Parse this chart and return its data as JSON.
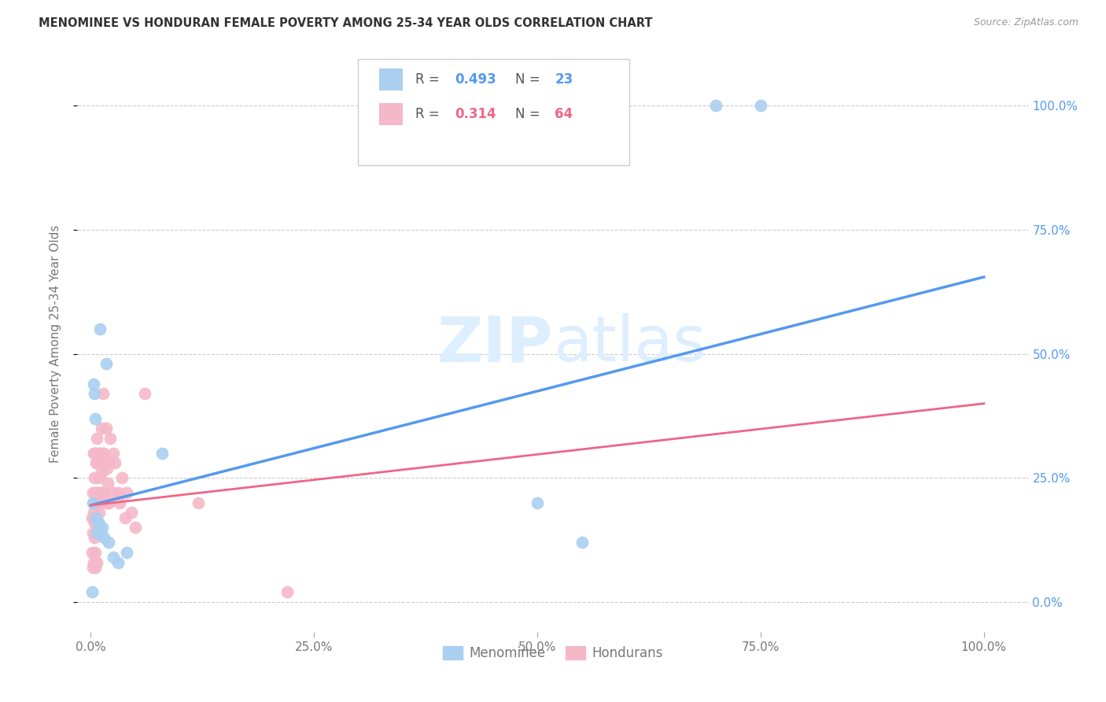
{
  "title": "MENOMINEE VS HONDURAN FEMALE POVERTY AMONG 25-34 YEAR OLDS CORRELATION CHART",
  "source": "Source: ZipAtlas.com",
  "ylabel": "Female Poverty Among 25-34 Year Olds",
  "menominee_R": 0.493,
  "menominee_N": 23,
  "honduran_R": 0.314,
  "honduran_N": 64,
  "menominee_color": "#aacff0",
  "honduran_color": "#f5b8c8",
  "menominee_line_color": "#5599ee",
  "honduran_line_color": "#ee6688",
  "background_color": "#ffffff",
  "menominee_x": [
    0.001,
    0.002,
    0.003,
    0.004,
    0.005,
    0.006,
    0.007,
    0.008,
    0.009,
    0.01,
    0.011,
    0.013,
    0.015,
    0.017,
    0.02,
    0.025,
    0.03,
    0.04,
    0.5,
    0.55,
    0.7,
    0.75,
    0.08
  ],
  "menominee_y": [
    0.02,
    0.2,
    0.44,
    0.42,
    0.37,
    0.17,
    0.14,
    0.16,
    0.15,
    0.55,
    0.14,
    0.15,
    0.13,
    0.48,
    0.12,
    0.09,
    0.08,
    0.1,
    0.2,
    0.12,
    1.0,
    1.0,
    0.3
  ],
  "honduran_x": [
    0.001,
    0.001,
    0.002,
    0.002,
    0.002,
    0.003,
    0.003,
    0.003,
    0.003,
    0.004,
    0.004,
    0.004,
    0.004,
    0.005,
    0.005,
    0.005,
    0.005,
    0.005,
    0.006,
    0.006,
    0.006,
    0.006,
    0.007,
    0.007,
    0.007,
    0.007,
    0.007,
    0.008,
    0.008,
    0.008,
    0.009,
    0.009,
    0.01,
    0.01,
    0.011,
    0.011,
    0.012,
    0.012,
    0.013,
    0.013,
    0.014,
    0.015,
    0.015,
    0.016,
    0.017,
    0.018,
    0.018,
    0.019,
    0.02,
    0.02,
    0.022,
    0.025,
    0.025,
    0.027,
    0.03,
    0.032,
    0.035,
    0.038,
    0.04,
    0.045,
    0.05,
    0.06,
    0.12,
    0.22
  ],
  "honduran_y": [
    0.17,
    0.1,
    0.14,
    0.22,
    0.07,
    0.18,
    0.2,
    0.3,
    0.08,
    0.16,
    0.25,
    0.13,
    0.3,
    0.17,
    0.22,
    0.3,
    0.1,
    0.07,
    0.28,
    0.22,
    0.16,
    0.08,
    0.33,
    0.28,
    0.2,
    0.14,
    0.08,
    0.3,
    0.22,
    0.16,
    0.25,
    0.18,
    0.3,
    0.22,
    0.28,
    0.2,
    0.35,
    0.26,
    0.3,
    0.22,
    0.42,
    0.3,
    0.22,
    0.28,
    0.35,
    0.27,
    0.2,
    0.24,
    0.28,
    0.2,
    0.33,
    0.3,
    0.22,
    0.28,
    0.22,
    0.2,
    0.25,
    0.17,
    0.22,
    0.18,
    0.15,
    0.42,
    0.2,
    0.02
  ],
  "line_men_x0": 0.0,
  "line_men_x1": 1.0,
  "line_men_y0": 0.195,
  "line_men_y1": 0.655,
  "line_hon_x0": 0.0,
  "line_hon_x1": 1.0,
  "line_hon_y0": 0.195,
  "line_hon_y1": 0.4,
  "xlim_min": -0.015,
  "xlim_max": 1.05,
  "ylim_min": -0.06,
  "ylim_max": 1.1,
  "xticks": [
    0.0,
    0.25,
    0.5,
    0.75,
    1.0
  ],
  "xticklabels": [
    "0.0%",
    "25.0%",
    "50.0%",
    "75.0%",
    "100.0%"
  ],
  "yticks": [
    0.0,
    0.25,
    0.5,
    0.75,
    1.0
  ],
  "yticklabels": [
    "0.0%",
    "25.0%",
    "50.0%",
    "75.0%",
    "100.0%"
  ]
}
